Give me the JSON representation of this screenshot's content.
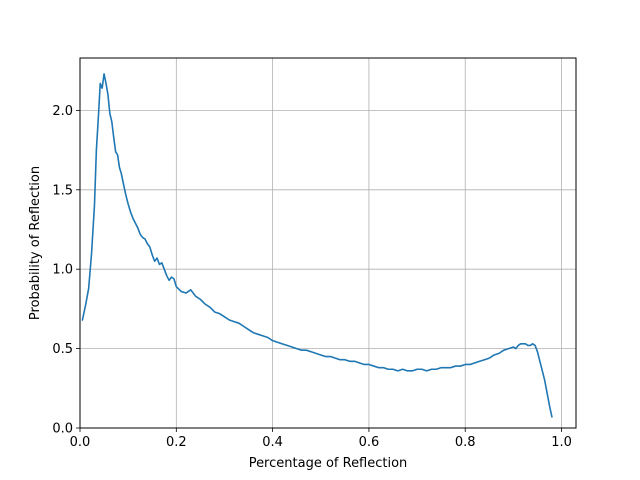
{
  "chart_data": {
    "type": "line",
    "title": "",
    "xlabel": "Percentage of Reflection",
    "ylabel": "Probability of Reflection",
    "xlim": [
      0.0,
      1.03
    ],
    "ylim": [
      0.0,
      2.33
    ],
    "xticks": [
      0.0,
      0.2,
      0.4,
      0.6,
      0.8,
      1.0
    ],
    "xtick_labels": [
      "0.0",
      "0.2",
      "0.4",
      "0.6",
      "0.8",
      "1.0"
    ],
    "yticks": [
      0.0,
      0.5,
      1.0,
      1.5,
      2.0
    ],
    "ytick_labels": [
      "0.0",
      "0.5",
      "1.0",
      "1.5",
      "2.0"
    ],
    "grid": true,
    "colors": {
      "line": "#1f77b4",
      "grid": "#b0b0b0",
      "axes": "#000000"
    },
    "series": [
      {
        "x": [
          0.005,
          0.012,
          0.018,
          0.024,
          0.03,
          0.034,
          0.038,
          0.042,
          0.046,
          0.05,
          0.054,
          0.058,
          0.062,
          0.066,
          0.07,
          0.074,
          0.078,
          0.082,
          0.086,
          0.09,
          0.095,
          0.1,
          0.105,
          0.11,
          0.115,
          0.12,
          0.125,
          0.13,
          0.135,
          0.14,
          0.145,
          0.15,
          0.155,
          0.16,
          0.165,
          0.17,
          0.175,
          0.18,
          0.185,
          0.19,
          0.195,
          0.2,
          0.21,
          0.22,
          0.23,
          0.24,
          0.25,
          0.26,
          0.27,
          0.28,
          0.29,
          0.3,
          0.31,
          0.32,
          0.33,
          0.34,
          0.35,
          0.36,
          0.37,
          0.38,
          0.39,
          0.4,
          0.41,
          0.42,
          0.43,
          0.44,
          0.45,
          0.46,
          0.47,
          0.48,
          0.49,
          0.5,
          0.51,
          0.52,
          0.53,
          0.54,
          0.55,
          0.56,
          0.57,
          0.58,
          0.59,
          0.6,
          0.61,
          0.62,
          0.63,
          0.64,
          0.65,
          0.66,
          0.67,
          0.68,
          0.69,
          0.7,
          0.71,
          0.72,
          0.73,
          0.74,
          0.75,
          0.76,
          0.77,
          0.78,
          0.79,
          0.8,
          0.81,
          0.82,
          0.83,
          0.84,
          0.85,
          0.86,
          0.87,
          0.88,
          0.89,
          0.9,
          0.905,
          0.91,
          0.915,
          0.92,
          0.925,
          0.93,
          0.935,
          0.94,
          0.945,
          0.95,
          0.955,
          0.96,
          0.965,
          0.97,
          0.975,
          0.98
        ],
        "y": [
          0.68,
          0.78,
          0.88,
          1.1,
          1.4,
          1.75,
          1.95,
          2.17,
          2.14,
          2.23,
          2.17,
          2.1,
          1.98,
          1.93,
          1.83,
          1.74,
          1.72,
          1.64,
          1.6,
          1.54,
          1.47,
          1.41,
          1.36,
          1.32,
          1.29,
          1.26,
          1.22,
          1.2,
          1.19,
          1.16,
          1.14,
          1.09,
          1.05,
          1.07,
          1.03,
          1.04,
          1.0,
          0.96,
          0.93,
          0.95,
          0.94,
          0.89,
          0.86,
          0.85,
          0.87,
          0.83,
          0.81,
          0.78,
          0.76,
          0.73,
          0.72,
          0.7,
          0.68,
          0.67,
          0.66,
          0.64,
          0.62,
          0.6,
          0.59,
          0.58,
          0.57,
          0.55,
          0.54,
          0.53,
          0.52,
          0.51,
          0.5,
          0.49,
          0.49,
          0.48,
          0.47,
          0.46,
          0.45,
          0.45,
          0.44,
          0.43,
          0.43,
          0.42,
          0.42,
          0.41,
          0.4,
          0.4,
          0.39,
          0.38,
          0.38,
          0.37,
          0.37,
          0.36,
          0.37,
          0.36,
          0.36,
          0.37,
          0.37,
          0.36,
          0.37,
          0.37,
          0.38,
          0.38,
          0.38,
          0.39,
          0.39,
          0.4,
          0.4,
          0.41,
          0.42,
          0.43,
          0.44,
          0.46,
          0.47,
          0.49,
          0.5,
          0.51,
          0.5,
          0.52,
          0.53,
          0.53,
          0.53,
          0.52,
          0.52,
          0.53,
          0.52,
          0.48,
          0.42,
          0.36,
          0.3,
          0.22,
          0.14,
          0.07
        ]
      }
    ]
  }
}
